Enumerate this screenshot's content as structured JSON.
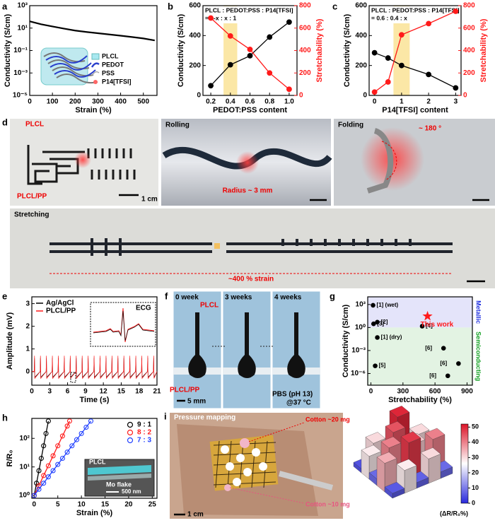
{
  "chart_data": [
    {
      "panel": "a",
      "type": "line",
      "x_label": "Strain (%)",
      "y_label": "Conductivity (S/cm)",
      "log_y": true,
      "xlim": [
        0,
        560
      ],
      "xticks": [
        0,
        100,
        200,
        300,
        400,
        500
      ],
      "ylim": [
        1e-05,
        1000
      ],
      "yticks": [
        {
          "value": 1e-05,
          "label": "10⁻⁵"
        },
        {
          "value": 0.001,
          "label": "10⁻³"
        },
        {
          "value": 0.1,
          "label": "10⁻¹"
        },
        {
          "value": 10,
          "label": "10¹"
        },
        {
          "value": 1000,
          "label": "10³"
        }
      ],
      "x": [
        0,
        50,
        100,
        150,
        200,
        250,
        300,
        350,
        400,
        450,
        500,
        550
      ],
      "series": [
        {
          "color": "#000000",
          "values": [
            40,
            22,
            14,
            9,
            6,
            4.5,
            3.5,
            2.7,
            2.1,
            1.6,
            1.2,
            0.8
          ]
        }
      ],
      "inset_legend": [
        "PLCL",
        "PEDOT",
        "PSS",
        "P14[TFSI]"
      ]
    },
    {
      "panel": "b",
      "type": "line",
      "annotation": [
        "PLCL : PEDOT:PSS : P14[TFSI]",
        "= 1-x : x : 1"
      ],
      "x_label": "PEDOT:PSS content",
      "y_label": "Conductivity (S/cm)",
      "y2_label": "Stretchability (%)",
      "xlim": [
        0.12,
        1.08
      ],
      "xticks": [
        0.2,
        0.4,
        0.6,
        0.8,
        {
          "value": 1,
          "label": "1.0"
        }
      ],
      "highlight": [
        0.33,
        0.47
      ],
      "ylim": [
        0,
        600
      ],
      "yticks": [
        0,
        200,
        400,
        600
      ],
      "y2lim": [
        0,
        800
      ],
      "y2ticks": [
        0,
        200,
        400,
        600,
        800
      ],
      "x": [
        0.2,
        0.4,
        0.6,
        0.8,
        1.0
      ],
      "series": [
        {
          "color": "#000000",
          "marker": "filled",
          "values": [
            65,
            205,
            265,
            390,
            490
          ]
        },
        {
          "color": "#ff1a1a",
          "marker": "filled",
          "axis": "y2",
          "values": [
            690,
            530,
            410,
            200,
            55
          ]
        }
      ]
    },
    {
      "panel": "c",
      "type": "line",
      "annotation": [
        "PLCL : PEDOT:PSS : P14[TFSI]",
        "= 0.6 : 0.4 : x"
      ],
      "x_label": "P14[TFSI] content",
      "y_label": "Conductivity (S/cm)",
      "y2_label": "Stretchability (%)",
      "xlim": [
        -0.2,
        3.2
      ],
      "xticks": [
        0,
        1,
        2,
        3
      ],
      "highlight": [
        0.7,
        1.3
      ],
      "ylim": [
        0,
        600
      ],
      "yticks": [
        0,
        200,
        400,
        600
      ],
      "y2lim": [
        0,
        800
      ],
      "y2ticks": [
        0,
        200,
        400,
        600,
        800
      ],
      "x": [
        0,
        0.5,
        1,
        2,
        3
      ],
      "series": [
        {
          "color": "#000000",
          "marker": "filled",
          "values": [
            285,
            250,
            200,
            140,
            50
          ]
        },
        {
          "color": "#ff1a1a",
          "marker": "filled",
          "axis": "y2",
          "values": [
            30,
            120,
            540,
            640,
            750
          ]
        }
      ]
    },
    {
      "panel": "e",
      "type": "line",
      "x_label": "Time (s)",
      "y_label": "Amplitude (mV)",
      "legend": "upper left",
      "inset_title": "ECG",
      "xlim": [
        0,
        21
      ],
      "xticks": [
        0,
        3,
        6,
        9,
        12,
        15,
        18,
        21
      ],
      "ylim": [
        -0.6,
        3.3
      ],
      "yticks": [
        0,
        1,
        2,
        3
      ],
      "x": [
        0,
        0.4,
        0.45,
        0.5,
        1.4,
        1.45,
        1.5,
        2.4,
        2.45,
        2.5,
        3.4,
        3.45,
        3.5,
        4.4,
        4.45,
        4.5,
        5.4,
        5.45,
        5.5,
        6.4,
        6.45,
        6.5,
        7.4,
        7.45,
        7.5,
        8.4,
        8.45,
        8.5,
        9.4,
        9.45,
        9.5,
        10.4,
        10.45,
        10.5,
        11.4,
        11.45,
        11.5,
        12.4,
        12.45,
        12.5,
        13.4,
        13.45,
        13.5,
        14.4,
        14.45,
        14.5,
        15.4,
        15.45,
        15.5,
        16.4,
        16.45,
        16.5,
        17.4,
        17.45,
        17.5,
        18.4,
        18.45,
        18.5,
        19.4,
        19.45,
        19.5,
        20.4,
        20.45,
        20.5,
        21
      ],
      "series": [
        {
          "name": "Ag/AgCl",
          "color": "#000000",
          "values": [
            0,
            0,
            0.6,
            -0.25,
            0,
            0.6,
            -0.25,
            0,
            0.6,
            -0.25,
            0,
            0.6,
            -0.25,
            0,
            0.6,
            -0.25,
            0,
            0.6,
            -0.25,
            0,
            0.6,
            -0.25,
            0,
            0.6,
            -0.25,
            0,
            0.6,
            -0.25,
            0,
            0.6,
            -0.25,
            0,
            0.6,
            -0.25,
            0,
            0.6,
            -0.25,
            0,
            0.6,
            -0.25,
            0,
            0.6,
            -0.25,
            0,
            0.6,
            -0.25,
            0,
            0.6,
            -0.25,
            0,
            0.6,
            -0.25,
            0,
            0.6,
            -0.25,
            0,
            0.6,
            -0.25,
            0,
            0.6,
            -0.25,
            0,
            0.6,
            -0.25,
            0
          ]
        },
        {
          "name": "PLCL/PP",
          "color": "#ff1a1a",
          "values": [
            0,
            0,
            0.7,
            -0.3,
            0,
            0.7,
            -0.3,
            0,
            0.7,
            -0.3,
            0,
            0.7,
            -0.3,
            0,
            0.7,
            -0.3,
            0,
            0.7,
            -0.3,
            0,
            0.7,
            -0.3,
            0,
            0.7,
            -0.3,
            0,
            0.7,
            -0.3,
            0,
            0.7,
            -0.3,
            0,
            0.7,
            -0.3,
            0,
            0.7,
            -0.3,
            0,
            0.7,
            -0.3,
            0,
            0.7,
            -0.3,
            0,
            0.7,
            -0.3,
            0,
            0.7,
            -0.3,
            0,
            0.7,
            -0.3,
            0,
            0.7,
            -0.3,
            0,
            0.7,
            -0.3,
            0,
            0.7,
            -0.3,
            0,
            0.7,
            -0.3,
            0
          ]
        }
      ]
    },
    {
      "panel": "g",
      "type": "scatter",
      "x_label": "Stretchability (%)",
      "y_label": "Conductivity (S/cm)",
      "log_y": true,
      "xlim": [
        -30,
        950
      ],
      "xticks": [
        0,
        300,
        600,
        900
      ],
      "ylim": [
        3e-08,
        10000
      ],
      "yticks": [
        {
          "value": 1e-06,
          "label": "10⁻⁶"
        },
        {
          "value": 0.001,
          "label": "10⁻³"
        },
        {
          "value": 1,
          "label": "10⁰"
        },
        {
          "value": 1000,
          "label": "10³"
        }
      ],
      "regions": [
        {
          "name": "Metallic",
          "from": 1,
          "to": 10000,
          "color": "#e4e4fa",
          "text_color": "#2030e0"
        },
        {
          "name": "Semiconducting",
          "from": 3e-08,
          "to": 1,
          "color": "#e3f3e3",
          "text_color": "#10a020"
        }
      ],
      "x": [
        20,
        60,
        25,
        60,
        480,
        40,
        680,
        820,
        720
      ],
      "values": [
        800,
        5,
        3,
        0.05,
        1.5,
        1e-05,
        0.002,
        2e-05,
        5e-07
      ],
      "point_labels": [
        "[1] (wet)",
        "[2]",
        "[3]",
        "[1] (dry)",
        "[4]",
        "[5]",
        "[6]",
        "[6]",
        "[6]"
      ],
      "star": {
        "label": "This work",
        "x": 530,
        "value": 30,
        "color": "#ff1a1a"
      }
    },
    {
      "panel": "h",
      "type": "line",
      "x_label": "Strain (%)",
      "y_label": "R/R₀",
      "log_y": true,
      "legend": "upper right",
      "xlim": [
        -0.5,
        26
      ],
      "xticks": [
        0,
        5,
        10,
        15,
        20,
        25
      ],
      "ylim": [
        0.8,
        500
      ],
      "yticks": [
        {
          "value": 1,
          "label": "10⁰"
        },
        {
          "value": 10,
          "label": "10¹"
        },
        {
          "value": 100,
          "label": "10²"
        }
      ],
      "series": [
        {
          "name": "9 : 1",
          "color": "#000000",
          "marker": "open",
          "x": [
            0,
            0.5,
            1,
            1.5,
            2,
            2.5,
            3
          ],
          "values": [
            1,
            2.7,
            7.4,
            20,
            55,
            148,
            403
          ]
        },
        {
          "name": "8 : 2",
          "color": "#ff1a1a",
          "marker": "open",
          "x": [
            0,
            1,
            2,
            3,
            4,
            5,
            6,
            7,
            7.5
          ],
          "values": [
            1,
            2.2,
            5,
            11,
            24.5,
            55,
            121,
            270,
            403
          ]
        },
        {
          "name": "7 : 3",
          "color": "#2040ff",
          "marker": "open",
          "x": [
            0,
            1,
            2,
            3,
            4,
            5,
            6,
            7,
            8,
            9,
            10,
            11,
            12
          ],
          "values": [
            1,
            1.65,
            2.7,
            4.5,
            7.4,
            12.2,
            20,
            33,
            55,
            90,
            148,
            245,
            403
          ]
        }
      ],
      "inset_labels": [
        "PLCL",
        "Mo flake",
        "500 nm"
      ]
    },
    {
      "type": "bar3d",
      "values": [
        [
          5,
          30,
          8,
          50,
          10
        ],
        [
          28,
          6,
          45,
          7,
          30
        ],
        [
          8,
          40,
          10,
          32,
          6
        ],
        [
          35,
          9,
          48,
          10,
          40
        ],
        [
          6,
          28,
          7,
          30,
          8
        ]
      ],
      "colorbar": {
        "lim": [
          0,
          52
        ],
        "ticks": [
          0,
          10,
          20,
          30,
          40,
          50
        ],
        "label": "(ΔR/R₀%)"
      }
    }
  ],
  "photos": [
    {
      "panel": "d",
      "labels": {
        "plcl": "PLCL",
        "plcl_pp": "PLCL/PP",
        "scale": "1 cm",
        "rolling": "Rolling",
        "radius": "Radius ~ 3 mm",
        "folding": "Folding",
        "angle": "~ 180 °",
        "stretching": "Stretching",
        "strain": "~400 % strain"
      }
    },
    {
      "panel": "f",
      "labels": {
        "w0": "0 week",
        "w3": "3 weeks",
        "w4": "4 weeks",
        "plcl": "PLCL",
        "plcl_pp": "PLCL/PP",
        "scale": "5 mm",
        "pbs": "PBS (pH 13)",
        "temp": "@37 °C"
      }
    },
    {
      "panel": "i",
      "labels": {
        "title": "Pressure mapping",
        "cotton20": "Cotton ~20 mg",
        "cotton10": "Cotton ~10 mg",
        "scale": "1 cm"
      }
    }
  ]
}
